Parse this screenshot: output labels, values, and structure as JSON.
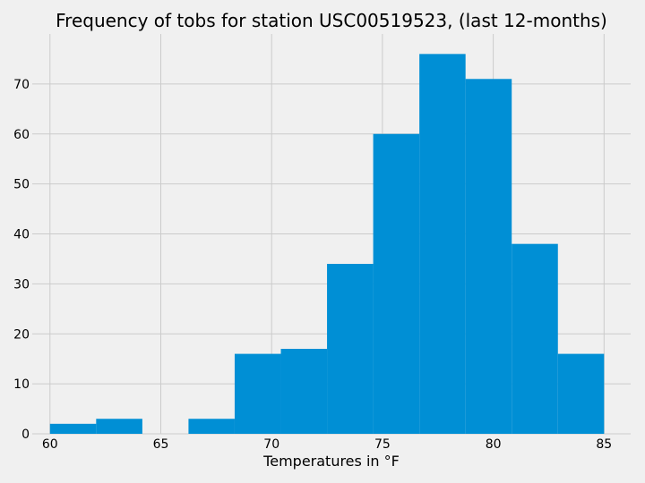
{
  "chart_data": {
    "type": "bar",
    "title": "Frequency of tobs for station USC00519523, (last 12-months)",
    "xlabel": "Temperatures in °F",
    "ylabel": "",
    "bin_edges": [
      60.0,
      62.083,
      64.167,
      66.25,
      68.333,
      70.417,
      72.5,
      74.583,
      76.667,
      78.75,
      80.833,
      82.917,
      85.0
    ],
    "values": [
      2,
      3,
      0,
      3,
      16,
      17,
      34,
      60,
      76,
      71,
      38,
      16
    ],
    "xlim": [
      59.2,
      86.2
    ],
    "ylim": [
      0,
      80
    ],
    "xticks": [
      60,
      65,
      70,
      75,
      80,
      85
    ],
    "yticks": [
      0,
      10,
      20,
      30,
      40,
      50,
      60,
      70
    ],
    "grid": true,
    "colors": {
      "bar": "#008fd5",
      "background": "#f0f0f0",
      "grid": "#cbcbcb"
    }
  }
}
